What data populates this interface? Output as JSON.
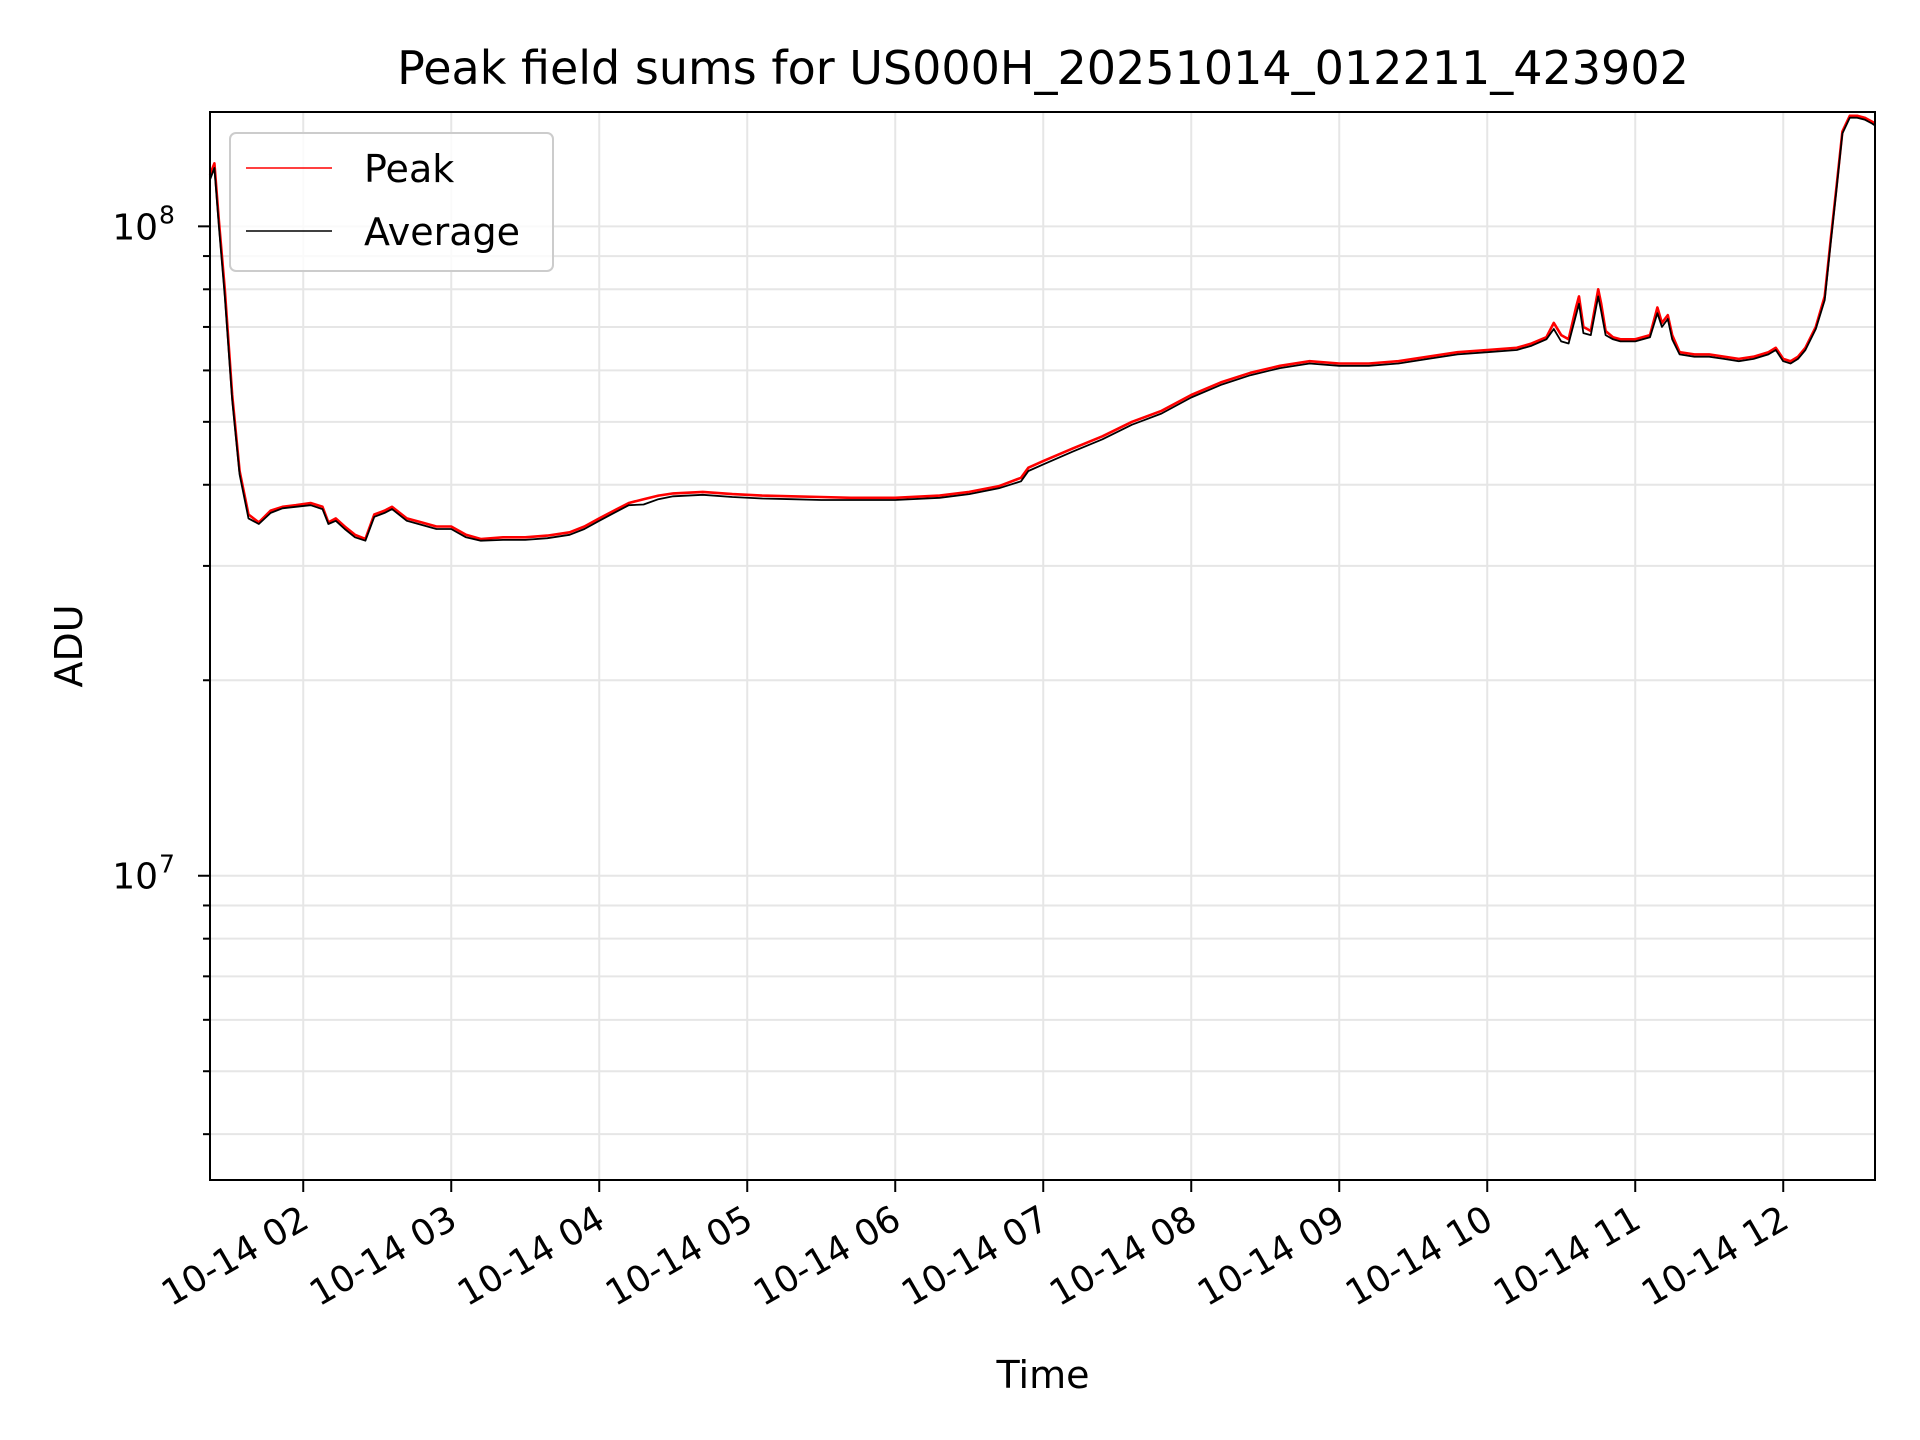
{
  "chart_data": {
    "type": "line",
    "title": "Peak field sums for US000H_20251014_012211_423902",
    "xlabel": "Time",
    "ylabel": "ADU",
    "yscale": "log",
    "ylim": [
      3400000,
      150000000
    ],
    "xlim_hours": [
      1.37,
      12.62
    ],
    "grid": true,
    "legend_position": "upper-left",
    "x_ticks": [
      {
        "hour": 2,
        "label": "10-14 02"
      },
      {
        "hour": 3,
        "label": "10-14 03"
      },
      {
        "hour": 4,
        "label": "10-14 04"
      },
      {
        "hour": 5,
        "label": "10-14 05"
      },
      {
        "hour": 6,
        "label": "10-14 06"
      },
      {
        "hour": 7,
        "label": "10-14 07"
      },
      {
        "hour": 8,
        "label": "10-14 08"
      },
      {
        "hour": 9,
        "label": "10-14 09"
      },
      {
        "hour": 10,
        "label": "10-14 10"
      },
      {
        "hour": 11,
        "label": "10-14 11"
      },
      {
        "hour": 12,
        "label": "10-14 12"
      }
    ],
    "y_ticks": [
      {
        "value": 10000000,
        "base": "10",
        "exp": "7"
      },
      {
        "value": 100000000,
        "base": "10",
        "exp": "8"
      }
    ],
    "series": [
      {
        "name": "Peak",
        "color": "#ff0000",
        "x_hours": [
          1.37,
          1.4,
          1.43,
          1.47,
          1.52,
          1.57,
          1.63,
          1.7,
          1.78,
          1.86,
          1.95,
          2.05,
          2.13,
          2.17,
          2.22,
          2.28,
          2.35,
          2.42,
          2.48,
          2.55,
          2.6,
          2.7,
          2.8,
          2.9,
          3.0,
          3.1,
          3.2,
          3.35,
          3.5,
          3.65,
          3.8,
          3.9,
          4.0,
          4.1,
          4.2,
          4.3,
          4.4,
          4.5,
          4.7,
          4.9,
          5.1,
          5.3,
          5.5,
          5.7,
          6.0,
          6.3,
          6.5,
          6.7,
          6.85,
          6.9,
          7.0,
          7.2,
          7.4,
          7.6,
          7.8,
          8.0,
          8.2,
          8.4,
          8.6,
          8.8,
          9.0,
          9.2,
          9.4,
          9.6,
          9.8,
          10.0,
          10.2,
          10.3,
          10.4,
          10.45,
          10.5,
          10.55,
          10.6,
          10.62,
          10.65,
          10.7,
          10.75,
          10.77,
          10.8,
          10.85,
          10.9,
          11.0,
          11.1,
          11.15,
          11.18,
          11.22,
          11.25,
          11.3,
          11.4,
          11.5,
          11.6,
          11.7,
          11.8,
          11.9,
          11.95,
          12.0,
          12.05,
          12.1,
          12.15,
          12.22,
          12.28,
          12.32,
          12.36,
          12.4,
          12.45,
          12.5,
          12.55,
          12.6,
          12.62
        ],
        "values": [
          120000000,
          125000000,
          102000000,
          80000000,
          55000000,
          42000000,
          36000000,
          35000000,
          36500000,
          37000000,
          37200000,
          37500000,
          37000000,
          35000000,
          35500000,
          34500000,
          33500000,
          33000000,
          36000000,
          36500000,
          37000000,
          35500000,
          35000000,
          34500000,
          34500000,
          33500000,
          33000000,
          33200000,
          33200000,
          33400000,
          33800000,
          34500000,
          35500000,
          36500000,
          37500000,
          38000000,
          38500000,
          38800000,
          39000000,
          38700000,
          38500000,
          38400000,
          38300000,
          38200000,
          38200000,
          38500000,
          39000000,
          39800000,
          41000000,
          42500000,
          43500000,
          45500000,
          47500000,
          50000000,
          52000000,
          55000000,
          57500000,
          59500000,
          61000000,
          62000000,
          61500000,
          61500000,
          62000000,
          63000000,
          64000000,
          64500000,
          65000000,
          66000000,
          67500000,
          71000000,
          68000000,
          67000000,
          75000000,
          78000000,
          70000000,
          69000000,
          80000000,
          76000000,
          69000000,
          67500000,
          67000000,
          67000000,
          68000000,
          75000000,
          71000000,
          73000000,
          68000000,
          64000000,
          63500000,
          63500000,
          63000000,
          62500000,
          63000000,
          64000000,
          65000000,
          62500000,
          62000000,
          63000000,
          65000000,
          70000000,
          78000000,
          95000000,
          115000000,
          140000000,
          148000000,
          148000000,
          147000000,
          145000000,
          144000000
        ]
      },
      {
        "name": "Average",
        "color": "#000000",
        "x_hours": [
          1.37,
          1.4,
          1.43,
          1.47,
          1.52,
          1.57,
          1.63,
          1.7,
          1.78,
          1.86,
          1.95,
          2.05,
          2.13,
          2.17,
          2.22,
          2.28,
          2.35,
          2.42,
          2.48,
          2.55,
          2.6,
          2.7,
          2.8,
          2.9,
          3.0,
          3.1,
          3.2,
          3.35,
          3.5,
          3.65,
          3.8,
          3.9,
          4.0,
          4.1,
          4.2,
          4.3,
          4.4,
          4.5,
          4.7,
          4.9,
          5.1,
          5.3,
          5.5,
          5.7,
          6.0,
          6.3,
          6.5,
          6.7,
          6.85,
          6.9,
          7.0,
          7.2,
          7.4,
          7.6,
          7.8,
          8.0,
          8.2,
          8.4,
          8.6,
          8.8,
          9.0,
          9.2,
          9.4,
          9.6,
          9.8,
          10.0,
          10.2,
          10.3,
          10.4,
          10.45,
          10.5,
          10.55,
          10.6,
          10.62,
          10.65,
          10.7,
          10.75,
          10.77,
          10.8,
          10.85,
          10.9,
          11.0,
          11.1,
          11.15,
          11.18,
          11.22,
          11.25,
          11.3,
          11.4,
          11.5,
          11.6,
          11.7,
          11.8,
          11.9,
          11.95,
          12.0,
          12.05,
          12.1,
          12.15,
          12.22,
          12.28,
          12.32,
          12.36,
          12.4,
          12.45,
          12.5,
          12.55,
          12.6,
          12.62
        ],
        "values": [
          118000000,
          123000000,
          100000000,
          78000000,
          54000000,
          41500000,
          35500000,
          34800000,
          36200000,
          36800000,
          37000000,
          37200000,
          36700000,
          34800000,
          35200000,
          34200000,
          33200000,
          32800000,
          35700000,
          36200000,
          36700000,
          35200000,
          34700000,
          34200000,
          34200000,
          33200000,
          32800000,
          32900000,
          32900000,
          33100000,
          33500000,
          34200000,
          35200000,
          36200000,
          37200000,
          37300000,
          38000000,
          38400000,
          38600000,
          38300000,
          38100000,
          38000000,
          37900000,
          37900000,
          37900000,
          38200000,
          38700000,
          39500000,
          40500000,
          42000000,
          43000000,
          45000000,
          47000000,
          49500000,
          51500000,
          54500000,
          57000000,
          59000000,
          60500000,
          61500000,
          61000000,
          61000000,
          61500000,
          62500000,
          63500000,
          64000000,
          64500000,
          65500000,
          67000000,
          69500000,
          66500000,
          66000000,
          73000000,
          76000000,
          68500000,
          68000000,
          78000000,
          74000000,
          68000000,
          67000000,
          66500000,
          66500000,
          67500000,
          73500000,
          70000000,
          72000000,
          67000000,
          63500000,
          63000000,
          63000000,
          62500000,
          62000000,
          62500000,
          63500000,
          64500000,
          62000000,
          61500000,
          62500000,
          64500000,
          69500000,
          77000000,
          94000000,
          114000000,
          139000000,
          147000000,
          147000000,
          146000000,
          144000000,
          143000000
        ]
      }
    ]
  }
}
